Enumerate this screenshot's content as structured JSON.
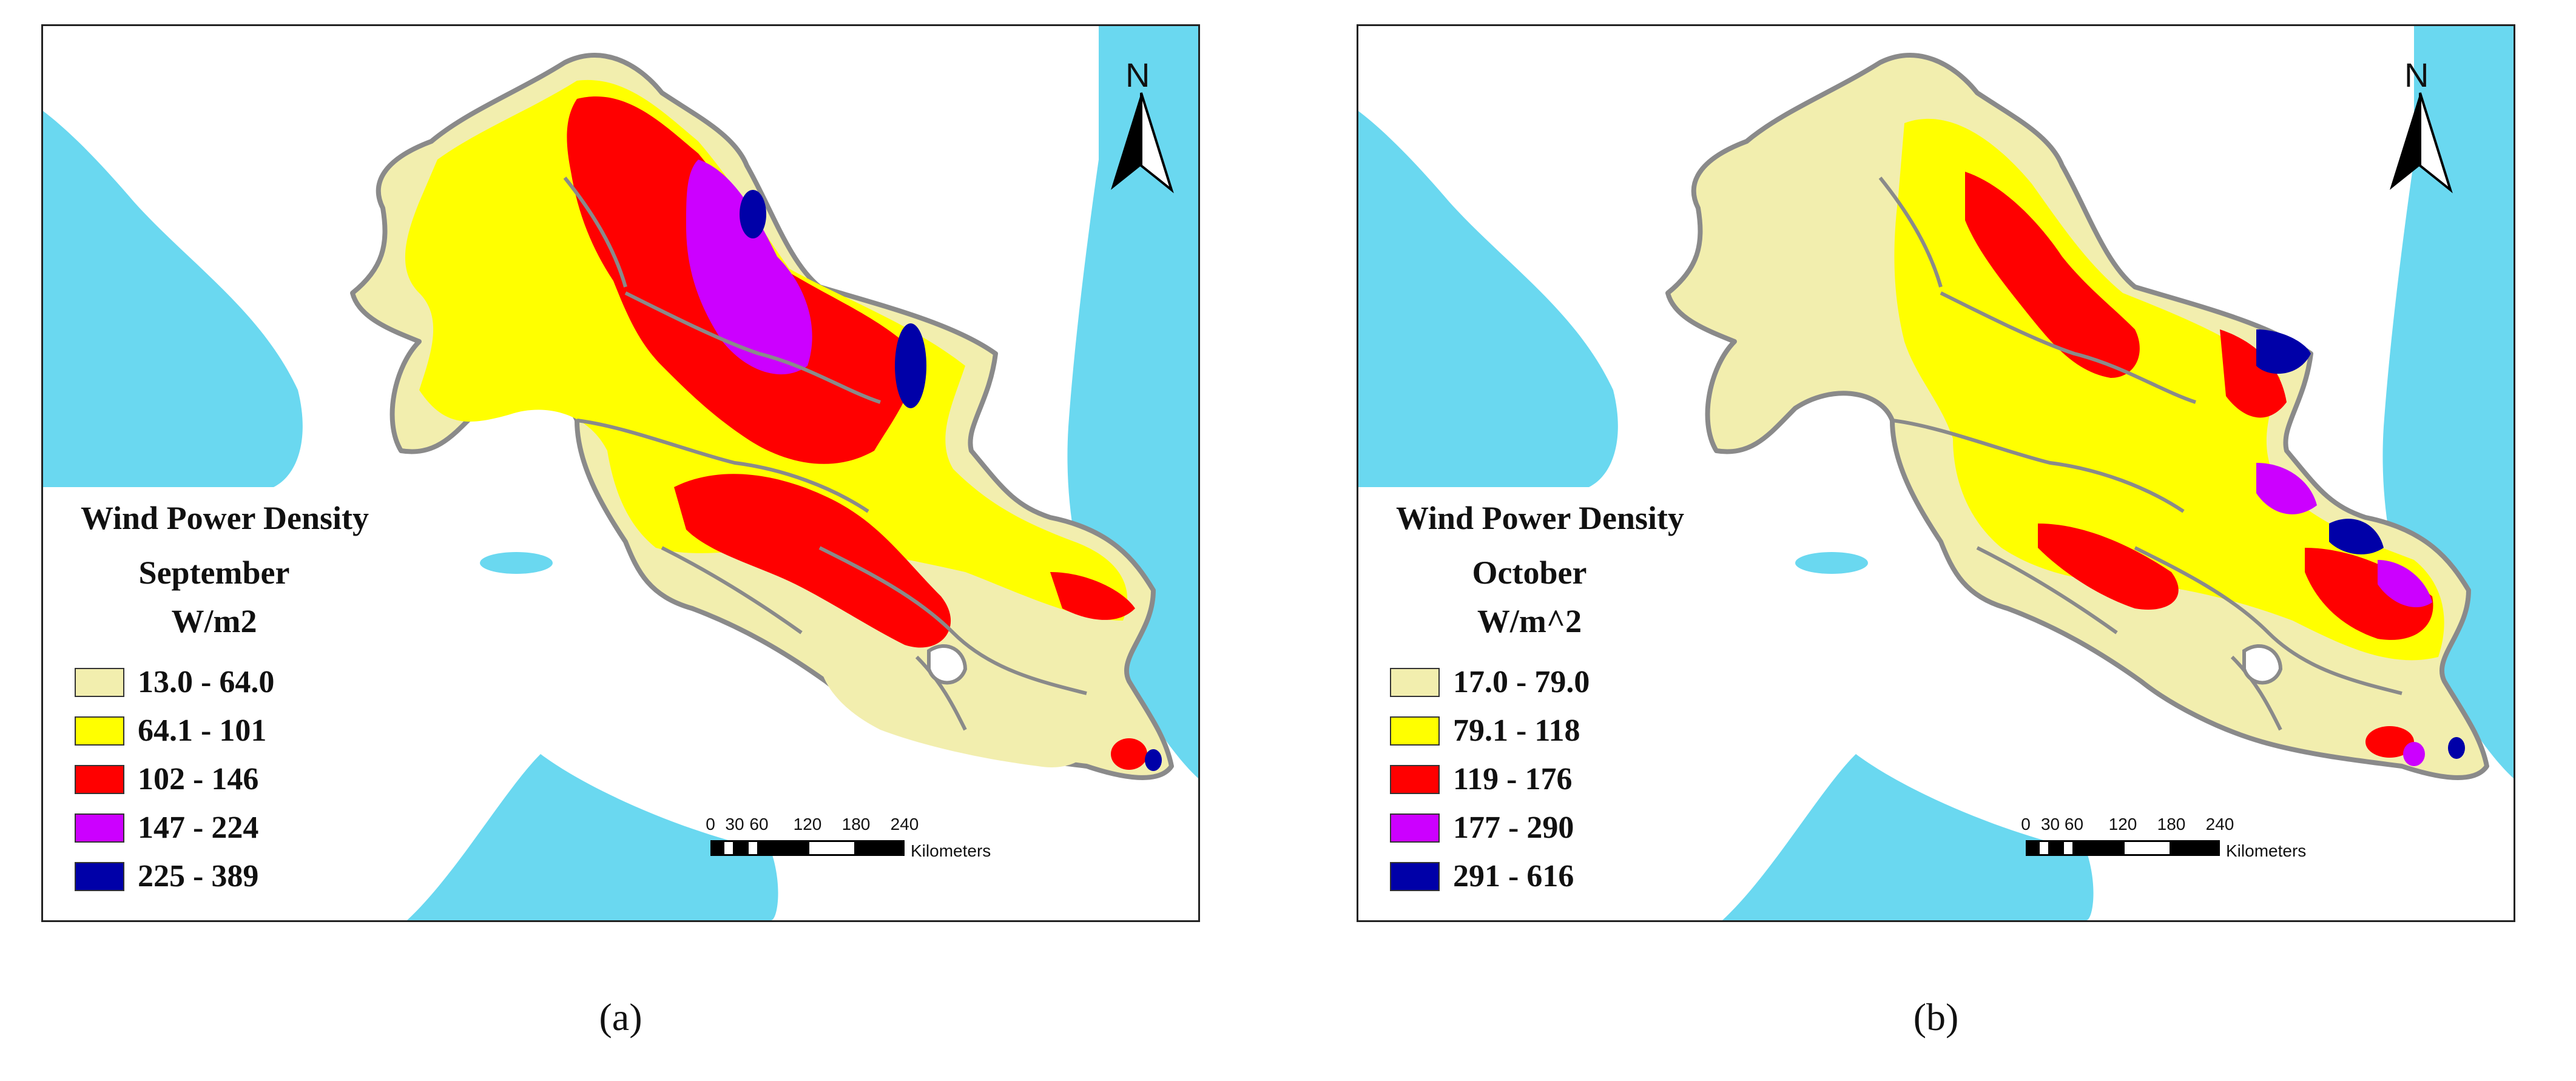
{
  "panels": [
    {
      "id": "a",
      "caption": "(a)",
      "legend": {
        "title": "Wind Power Density",
        "month": "September",
        "unit": "W/m2",
        "classes": [
          {
            "label": "13.0 - 64.0",
            "color": "#f2eeae"
          },
          {
            "label": "64.1 - 101",
            "color": "#ffff00"
          },
          {
            "label": "102 - 146",
            "color": "#ff0000"
          },
          {
            "label": "147 - 224",
            "color": "#cc00ff"
          },
          {
            "label": "225 - 389",
            "color": "#0000a8"
          }
        ]
      },
      "north_label": "N",
      "scale": {
        "ticks": [
          "0",
          "30",
          "60",
          "120",
          "180",
          "240"
        ],
        "unit": "Kilometers"
      }
    },
    {
      "id": "b",
      "caption": "(b)",
      "legend": {
        "title": "Wind Power Density",
        "month": "October",
        "unit": "W/m^2",
        "classes": [
          {
            "label": "17.0 - 79.0",
            "color": "#f2eeae"
          },
          {
            "label": "79.1 - 118",
            "color": "#ffff00"
          },
          {
            "label": "119 - 176",
            "color": "#ff0000"
          },
          {
            "label": "177 - 290",
            "color": "#cc00ff"
          },
          {
            "label": "291 - 616",
            "color": "#0000a8"
          }
        ]
      },
      "north_label": "N",
      "scale": {
        "ticks": [
          "0",
          "30 60",
          "120",
          "180",
          "240"
        ],
        "unit": "Kilometers"
      }
    }
  ],
  "colors": {
    "water": "#6ad8f0",
    "land": "#ffffff",
    "boundary": "#8a8a8a"
  }
}
